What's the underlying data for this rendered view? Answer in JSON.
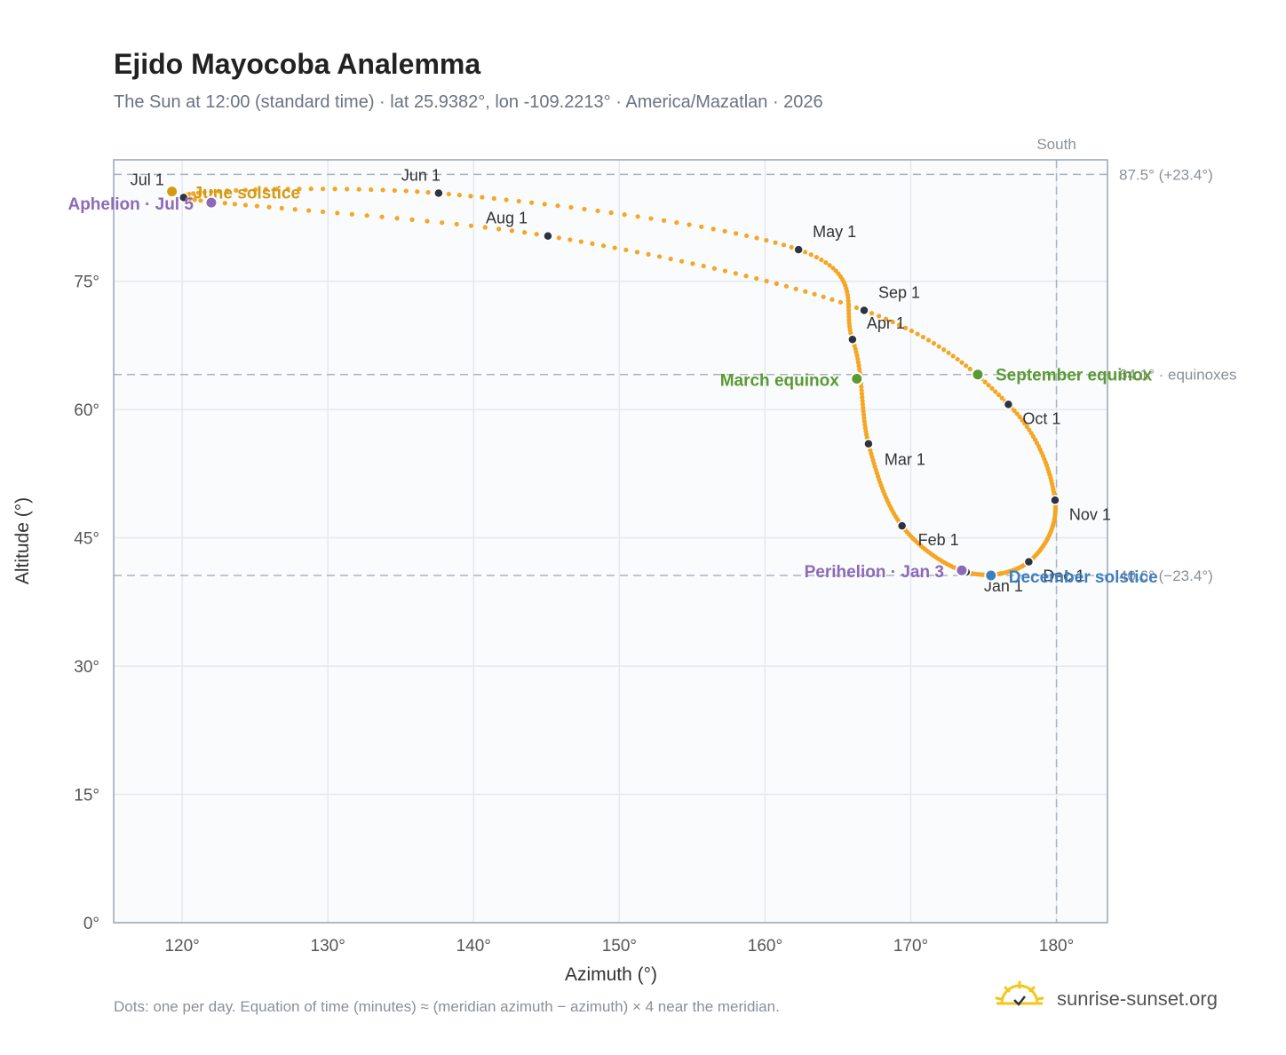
{
  "title": "Ejido Mayocoba Analemma",
  "subtitle": "The Sun at 12:00 (standard time) · lat 25.9382°, lon -109.2213° · America/Mazatlan · 2026",
  "footnote": "Dots: one per day. Equation of time (minutes) ≈ (meridian azimuth − azimuth) × 4 near the meridian.",
  "brand": "sunrise-sunset.org",
  "colors": {
    "curve": "#f5a623",
    "month_dot": "#2d3440",
    "solstice_june": "#d49a12",
    "solstice_december": "#3f7fbf",
    "equinox": "#5a9a32",
    "apsis": "#8d6ab8",
    "grid": "#e5e9ee",
    "plot_bg": "#f9fbfd",
    "refline": "#aab4bf"
  },
  "chart_data": {
    "type": "scatter",
    "xlabel": "Azimuth (°)",
    "ylabel": "Altitude (°)",
    "xlim": [
      115.3,
      183.5
    ],
    "ylim": [
      0,
      89.2
    ],
    "x_ticks": [
      120,
      130,
      140,
      150,
      160,
      170,
      180
    ],
    "x_tick_labels": [
      "120°",
      "130°",
      "140°",
      "150°",
      "160°",
      "170°",
      "180°"
    ],
    "y_ticks": [
      0,
      15,
      30,
      45,
      60,
      75
    ],
    "y_tick_labels": [
      "0°",
      "15°",
      "30°",
      "45°",
      "60°",
      "75°"
    ],
    "grid": true,
    "meridian": {
      "azimuth": 180,
      "label": "South"
    },
    "reference_lines": [
      {
        "altitude": 87.5,
        "label": "87.5° (+23.4°)"
      },
      {
        "altitude": 64.1,
        "label": "64.1° · equinoxes"
      },
      {
        "altitude": 40.6,
        "label": "40.6° (−23.4°)"
      }
    ],
    "month_markers": [
      {
        "label": "Jan 1",
        "az": 173.8,
        "alt": 41.0
      },
      {
        "label": "Feb 1",
        "az": 169.4,
        "alt": 46.4
      },
      {
        "label": "Mar 1",
        "az": 167.1,
        "alt": 56.0
      },
      {
        "label": "Apr 1",
        "az": 166.0,
        "alt": 68.2
      },
      {
        "label": "May 1",
        "az": 162.3,
        "alt": 78.7
      },
      {
        "label": "Jun 1",
        "az": 137.6,
        "alt": 85.3
      },
      {
        "label": "Jul 1",
        "az": 120.1,
        "alt": 84.8
      },
      {
        "label": "Aug 1",
        "az": 145.1,
        "alt": 80.3
      },
      {
        "label": "Sep 1",
        "az": 166.8,
        "alt": 71.6
      },
      {
        "label": "Oct 1",
        "az": 176.7,
        "alt": 60.6
      },
      {
        "label": "Nov 1",
        "az": 179.9,
        "alt": 49.4
      },
      {
        "label": "Dec 1",
        "az": 178.1,
        "alt": 42.2
      }
    ],
    "events": [
      {
        "label": "June solstice",
        "az": 119.3,
        "alt": 85.5,
        "kind": "solstice_june"
      },
      {
        "label": "December solstice",
        "az": 175.5,
        "alt": 40.6,
        "kind": "solstice_december"
      },
      {
        "label": "March equinox",
        "az": 166.3,
        "alt": 63.6,
        "kind": "equinox"
      },
      {
        "label": "September equinox",
        "az": 174.6,
        "alt": 64.1,
        "kind": "equinox"
      },
      {
        "label": "Aphelion · Jul 5",
        "az": 122.0,
        "alt": 84.2,
        "kind": "apsis"
      },
      {
        "label": "Perihelion · Jan 3",
        "az": 173.5,
        "alt": 41.2,
        "kind": "apsis"
      }
    ]
  }
}
